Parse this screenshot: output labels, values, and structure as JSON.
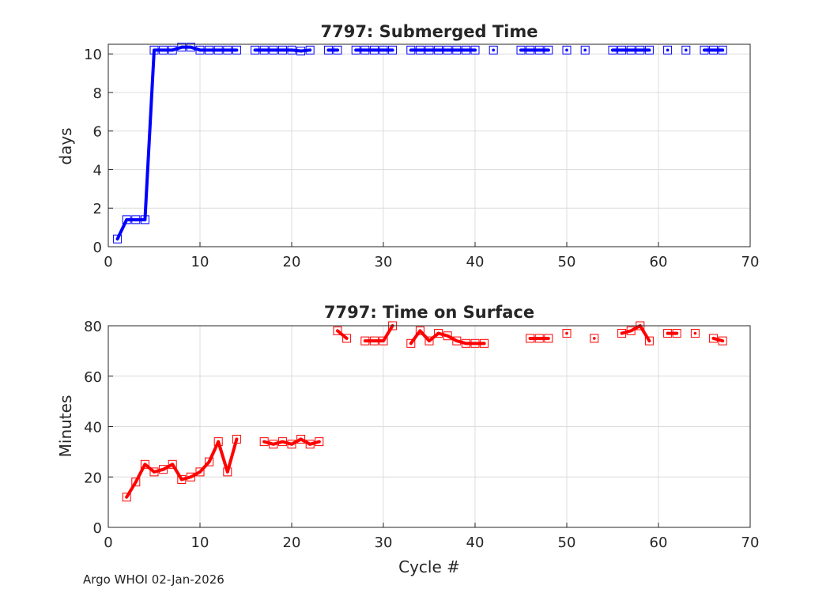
{
  "footer": "Argo WHOI 02-Jan-2026",
  "colors": {
    "series1": "#0000ff",
    "series2": "#ff0000",
    "grid": "#dcdcdc",
    "axis": "#262626"
  },
  "chart_data": [
    {
      "type": "line",
      "title": "7797: Submerged Time",
      "xlabel": "",
      "ylabel": "days",
      "xlim": [
        0,
        70
      ],
      "ylim": [
        0,
        10.5
      ],
      "xticks": [
        0,
        10,
        20,
        30,
        40,
        50,
        60,
        70
      ],
      "yticks": [
        0,
        2,
        4,
        6,
        8,
        10
      ],
      "grid": true,
      "series": [
        {
          "name": "Submerged Time",
          "color": "#0000ff",
          "x": [
            1,
            2,
            3,
            4,
            5,
            6,
            7,
            8,
            9,
            10,
            11,
            12,
            13,
            14,
            16,
            17,
            18,
            19,
            20,
            21,
            22,
            24,
            25,
            27,
            28,
            29,
            30,
            31,
            33,
            34,
            35,
            36,
            37,
            38,
            39,
            40,
            42,
            45,
            46,
            47,
            48,
            50,
            52,
            55,
            56,
            57,
            58,
            59,
            61,
            63,
            65,
            66,
            67
          ],
          "y": [
            0.4,
            1.4,
            1.4,
            1.4,
            10.2,
            10.2,
            10.2,
            10.35,
            10.35,
            10.2,
            10.2,
            10.2,
            10.2,
            10.2,
            10.2,
            10.2,
            10.2,
            10.2,
            10.2,
            10.15,
            10.2,
            10.2,
            10.2,
            10.2,
            10.2,
            10.2,
            10.2,
            10.2,
            10.2,
            10.2,
            10.2,
            10.2,
            10.2,
            10.2,
            10.2,
            10.2,
            10.2,
            10.2,
            10.2,
            10.2,
            10.2,
            10.2,
            10.2,
            10.2,
            10.2,
            10.2,
            10.2,
            10.2,
            10.2,
            10.2,
            10.2,
            10.2,
            10.2
          ]
        }
      ]
    },
    {
      "type": "line",
      "title": "7797: Time on Surface",
      "xlabel": "Cycle #",
      "ylabel": "Minutes",
      "xlim": [
        0,
        70
      ],
      "ylim": [
        0,
        80
      ],
      "xticks": [
        0,
        10,
        20,
        30,
        40,
        50,
        60,
        70
      ],
      "yticks": [
        0,
        20,
        40,
        60,
        80
      ],
      "grid": true,
      "series": [
        {
          "name": "Time on Surface",
          "color": "#ff0000",
          "x": [
            2,
            3,
            4,
            5,
            6,
            7,
            8,
            9,
            10,
            11,
            12,
            13,
            14,
            17,
            18,
            19,
            20,
            21,
            22,
            23,
            25,
            26,
            28,
            29,
            30,
            31,
            33,
            34,
            35,
            36,
            37,
            38,
            39,
            40,
            41,
            46,
            47,
            48,
            50,
            53,
            56,
            57,
            58,
            59,
            61,
            62,
            64,
            66,
            67
          ],
          "y": [
            12,
            18,
            25,
            22,
            23,
            25,
            19,
            20,
            22,
            26,
            34,
            22,
            35,
            34,
            33,
            34,
            33,
            35,
            33,
            34,
            78,
            75,
            74,
            74,
            74,
            80,
            73,
            78,
            74,
            77,
            76,
            74,
            73,
            73,
            73,
            75,
            75,
            75,
            77,
            75,
            77,
            78,
            80,
            74,
            77,
            77,
            77,
            75,
            74
          ]
        }
      ]
    }
  ]
}
